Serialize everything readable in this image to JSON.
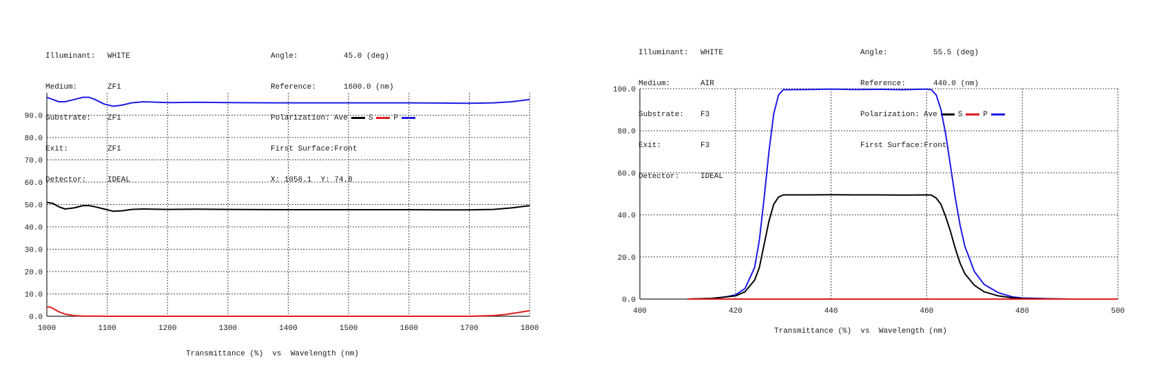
{
  "chart_data": [
    {
      "type": "line",
      "title": "",
      "xlabel": "Transmittance (%)  vs  Wavelength (nm)",
      "ylabel": "",
      "xlim": [
        1000,
        1800
      ],
      "ylim": [
        0,
        100
      ],
      "x_ticks": [
        "1000",
        "1100",
        "1200",
        "1300",
        "1400",
        "1500",
        "1600",
        "1700",
        "1800"
      ],
      "y_ticks": [
        "0.0",
        "10.0",
        "20.0",
        "30.0",
        "40.0",
        "50.0",
        "60.0",
        "70.0",
        "80.0",
        "90.0"
      ],
      "grid": true,
      "header": {
        "illuminant_label": "Illuminant:",
        "illuminant": "WHITE",
        "medium_label": "Medium:",
        "medium": "ZF1",
        "substrate_label": "Substrate:",
        "substrate": "ZF1",
        "exit_label": "Exit:",
        "exit": "ZF1",
        "detector_label": "Detector:",
        "detector": "IDEAL",
        "angle_label": "Angle:",
        "angle": "45.0 (deg)",
        "reference_label": "Reference:",
        "reference": "1600.0 (nm)",
        "polarization_label": "Polarization:",
        "first_surface_label": "First Surface:",
        "first_surface": "Front",
        "cursor": "X: 1056.1  Y: 74.8"
      },
      "legend": [
        {
          "label": "Ave",
          "color": "#000000"
        },
        {
          "label": "S",
          "color": "#e01b1b"
        },
        {
          "label": "P",
          "color": "#1a1ae6"
        }
      ],
      "series": [
        {
          "name": "P",
          "color": "#1a1ae6",
          "x": [
            1000,
            1010,
            1020,
            1030,
            1045,
            1060,
            1070,
            1080,
            1095,
            1110,
            1125,
            1140,
            1160,
            1200,
            1250,
            1300,
            1400,
            1500,
            1600,
            1650,
            1700,
            1740,
            1770,
            1800
          ],
          "y": [
            98,
            97,
            96,
            96,
            97,
            98,
            98,
            97,
            95,
            94,
            94.5,
            95.5,
            96,
            95.6,
            95.8,
            95.6,
            95.5,
            95.5,
            95.5,
            95.4,
            95.3,
            95.5,
            96,
            97
          ]
        },
        {
          "name": "Ave",
          "color": "#000000",
          "x": [
            1000,
            1010,
            1020,
            1030,
            1045,
            1060,
            1070,
            1080,
            1095,
            1110,
            1125,
            1140,
            1160,
            1200,
            1250,
            1300,
            1400,
            1500,
            1600,
            1650,
            1700,
            1740,
            1770,
            1800
          ],
          "y": [
            51,
            50.5,
            49,
            48,
            48.5,
            49.5,
            49.5,
            49,
            48,
            47,
            47.2,
            47.8,
            48,
            47.8,
            47.9,
            47.8,
            47.7,
            47.7,
            47.7,
            47.6,
            47.6,
            47.8,
            48.5,
            49.5
          ]
        },
        {
          "name": "S",
          "color": "#e01b1b",
          "x": [
            1000,
            1005,
            1010,
            1020,
            1030,
            1045,
            1060,
            1100,
            1200,
            1300,
            1400,
            1500,
            1600,
            1700,
            1740,
            1760,
            1780,
            1800
          ],
          "y": [
            4,
            4.2,
            3.5,
            2,
            1,
            0.3,
            0.1,
            0,
            0,
            0,
            0,
            0,
            0,
            0,
            0.3,
            0.8,
            1.6,
            2.5
          ]
        }
      ]
    },
    {
      "type": "line",
      "title": "",
      "xlabel": "Transmittance (%)  vs  Wavelength (nm)",
      "ylabel": "",
      "xlim": [
        400,
        500
      ],
      "ylim": [
        0,
        100
      ],
      "x_ticks": [
        "400",
        "420",
        "440",
        "460",
        "480",
        "500"
      ],
      "y_ticks": [
        "0.0",
        "20.0",
        "40.0",
        "60.0",
        "80.0",
        "100.0"
      ],
      "grid": true,
      "header": {
        "illuminant_label": "Illuminant:",
        "illuminant": "WHITE",
        "medium_label": "Medium:",
        "medium": "AIR",
        "substrate_label": "Substrate:",
        "substrate": "F3",
        "exit_label": "Exit:",
        "exit": "F3",
        "detector_label": "Detector:",
        "detector": "IDEAL",
        "angle_label": "Angle:",
        "angle": "55.5 (deg)",
        "reference_label": "Reference:",
        "reference": "440.0 (nm)",
        "polarization_label": "Polarization:",
        "first_surface_label": "First Surface:",
        "first_surface": "Front"
      },
      "legend": [
        {
          "label": "Ave",
          "color": "#000000"
        },
        {
          "label": "S",
          "color": "#e01b1b"
        },
        {
          "label": "P",
          "color": "#1a1ae6"
        }
      ],
      "series": [
        {
          "name": "P",
          "color": "#1a1ae6",
          "x": [
            410,
            415,
            418,
            420,
            422,
            424,
            425,
            426,
            427,
            428,
            429,
            430,
            435,
            440,
            445,
            450,
            455,
            460,
            461,
            462,
            463,
            464,
            465,
            466,
            467,
            468,
            470,
            472,
            475,
            478,
            480,
            485,
            490,
            500
          ],
          "y": [
            0,
            0.3,
            1,
            2,
            5,
            15,
            28,
            48,
            70,
            88,
            97,
            99.5,
            99.6,
            99.8,
            99.6,
            99.7,
            99.5,
            99.8,
            99.5,
            97,
            90,
            78,
            63,
            48,
            35,
            25,
            13,
            7,
            3,
            1,
            0.5,
            0.2,
            0,
            0
          ]
        },
        {
          "name": "Ave",
          "color": "#000000",
          "x": [
            410,
            415,
            418,
            420,
            422,
            424,
            425,
            426,
            427,
            428,
            429,
            430,
            435,
            440,
            445,
            450,
            455,
            460,
            461,
            462,
            463,
            464,
            465,
            466,
            467,
            468,
            470,
            472,
            475,
            478,
            480,
            485,
            490,
            500
          ],
          "y": [
            0,
            0.3,
            1,
            1.5,
            3.5,
            9,
            15,
            26,
            37,
            45,
            48.5,
            49.5,
            49.5,
            49.6,
            49.5,
            49.5,
            49.4,
            49.5,
            49.4,
            48,
            45,
            39,
            32,
            24,
            17,
            12,
            6.5,
            3.5,
            1.5,
            0.6,
            0.3,
            0.1,
            0,
            0
          ]
        },
        {
          "name": "S",
          "color": "#e01b1b",
          "x": [
            410,
            420,
            440,
            460,
            480,
            500
          ],
          "y": [
            0,
            0,
            0,
            0,
            0,
            0
          ]
        }
      ]
    }
  ]
}
